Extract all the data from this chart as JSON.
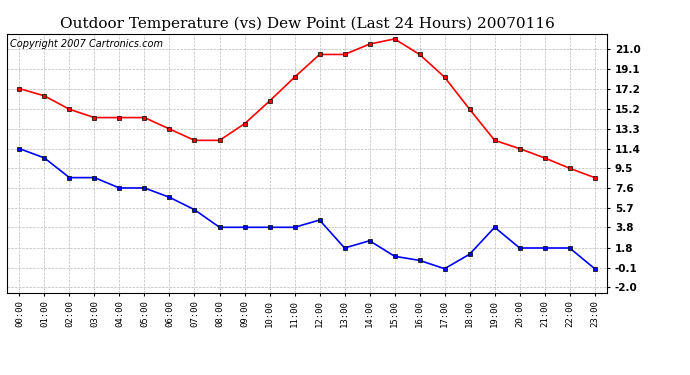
{
  "title": "Outdoor Temperature (vs) Dew Point (Last 24 Hours) 20070116",
  "copyright_text": "Copyright 2007 Cartronics.com",
  "hours": [
    "00:00",
    "01:00",
    "02:00",
    "03:00",
    "04:00",
    "05:00",
    "06:00",
    "07:00",
    "08:00",
    "09:00",
    "10:00",
    "11:00",
    "12:00",
    "13:00",
    "14:00",
    "15:00",
    "16:00",
    "17:00",
    "18:00",
    "19:00",
    "20:00",
    "21:00",
    "22:00",
    "23:00"
  ],
  "temp": [
    17.2,
    16.5,
    15.2,
    14.4,
    14.4,
    14.4,
    13.3,
    12.2,
    12.2,
    13.8,
    16.0,
    18.3,
    20.5,
    20.5,
    21.5,
    22.0,
    20.5,
    18.3,
    15.2,
    12.2,
    11.4,
    10.5,
    9.5,
    8.6
  ],
  "dewpoint": [
    11.4,
    10.5,
    8.6,
    8.6,
    7.6,
    7.6,
    6.7,
    5.5,
    3.8,
    3.8,
    3.8,
    3.8,
    4.5,
    1.8,
    2.5,
    1.0,
    0.6,
    -0.2,
    1.2,
    3.8,
    1.8,
    1.8,
    1.8,
    -0.2
  ],
  "temp_color": "#ff0000",
  "dew_color": "#0000ff",
  "bg_color": "#ffffff",
  "grid_color": "#bbbbbb",
  "yticks": [
    21.0,
    19.1,
    17.2,
    15.2,
    13.3,
    11.4,
    9.5,
    7.6,
    5.7,
    3.8,
    1.8,
    -0.1,
    -2.0
  ],
  "ylim": [
    -2.5,
    22.5
  ],
  "title_fontsize": 11,
  "copyright_fontsize": 7,
  "marker": "s",
  "marker_size": 3,
  "linewidth": 1.2
}
